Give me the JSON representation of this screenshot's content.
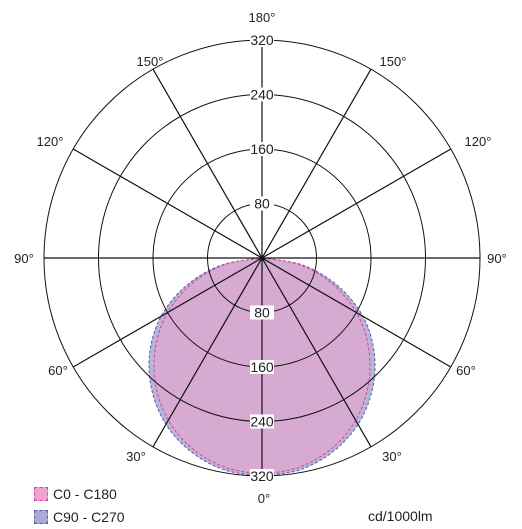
{
  "chart_data": {
    "type": "polar",
    "unit_label": "cd/1000lm",
    "r_max": 320,
    "radial_ticks": [
      80,
      160,
      240,
      320
    ],
    "angle_labels": {
      "top": "180°",
      "upper_left": "150°",
      "upper_right": "150°",
      "mid_upper_left": "120°",
      "mid_upper_right": "120°",
      "left": "90°",
      "right": "90°",
      "mid_lower_left": "60°",
      "mid_lower_right": "60°",
      "lower_left": "30°",
      "lower_right": "30°",
      "bottom": "0°"
    },
    "series": [
      {
        "name": "C0 - C180",
        "fill": "#d9a9cf",
        "stroke": "#e0408f",
        "gamma": [
          0,
          10,
          20,
          30,
          40,
          50,
          60,
          70,
          80,
          90
        ],
        "intensity": [
          318,
          312,
          298,
          275,
          243,
          204,
          160,
          109,
          56,
          0
        ]
      },
      {
        "name": "C90 - C270",
        "fill": "#a9a9d4",
        "stroke": "#5a5aa8",
        "gamma": [
          0,
          10,
          20,
          30,
          40,
          50,
          60,
          70,
          80,
          90
        ],
        "intensity": [
          320,
          316,
          303,
          282,
          252,
          215,
          171,
          118,
          61,
          0
        ]
      }
    ]
  }
}
